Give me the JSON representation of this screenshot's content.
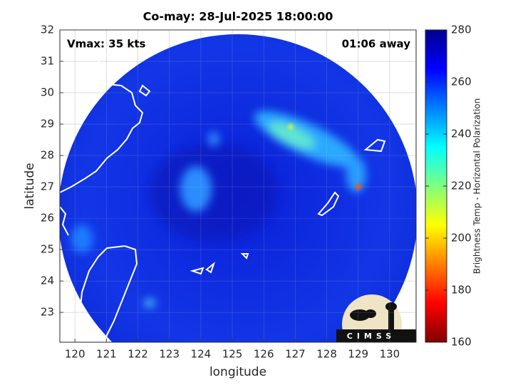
{
  "title": "Co-may: 28-Jul-2025 18:00:00",
  "annotations": {
    "intensity": "Vmax: 35 kts",
    "time_offset": "01:06 away"
  },
  "x_axis": {
    "label": "longitude",
    "xlim": [
      119.52,
      130.84
    ],
    "xticks": [
      120,
      121,
      122,
      123,
      124,
      125,
      126,
      127,
      128,
      129,
      130
    ]
  },
  "y_axis": {
    "label": "latitude",
    "ylim": [
      22.05,
      32
    ],
    "yticks": [
      23,
      24,
      25,
      26,
      27,
      28,
      29,
      30,
      31,
      32
    ]
  },
  "colorbar": {
    "label": "Brightness Temp - Horizontal Polarization",
    "lim": [
      160,
      280
    ],
    "ticks": [
      160,
      180,
      200,
      220,
      240,
      260,
      280
    ]
  },
  "logo": "CIMSS"
}
